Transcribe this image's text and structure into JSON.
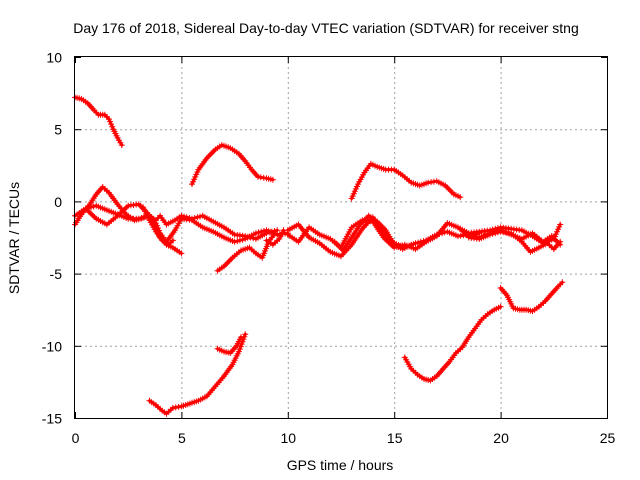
{
  "chart_data": {
    "type": "scatter",
    "title": "Day 176 of 2018, Sidereal Day-to-day VTEC variation (SDTVAR) for receiver stng",
    "xlabel": "GPS time / hours",
    "ylabel": "SDTVAR / TECUs",
    "xlim": [
      0,
      25
    ],
    "ylim": [
      -15,
      10
    ],
    "xticks": [
      0,
      5,
      10,
      15,
      20,
      25
    ],
    "yticks": [
      -15,
      -10,
      -5,
      0,
      5,
      10
    ],
    "grid": true,
    "marker": "plus",
    "color": "#ff0000",
    "series": [
      {
        "name": "s1",
        "x": [
          0.0,
          0.3,
          0.6,
          0.9,
          1.1,
          1.4,
          1.6,
          1.8,
          2.0,
          2.2
        ],
        "y": [
          7.2,
          7.1,
          6.8,
          6.3,
          6.0,
          6.0,
          5.7,
          5.0,
          4.4,
          3.9
        ]
      },
      {
        "name": "s2",
        "x": [
          0.0,
          0.3,
          0.7,
          1.0,
          1.3,
          1.6,
          2.0,
          2.4,
          2.8,
          3.1,
          3.4,
          3.7,
          4.0,
          4.3,
          4.6,
          5.0
        ],
        "y": [
          -1.6,
          -0.9,
          -0.2,
          0.5,
          1.0,
          0.6,
          -0.2,
          -0.9,
          -1.3,
          -1.2,
          -1.0,
          -1.6,
          -2.5,
          -3.0,
          -3.2,
          -3.6
        ]
      },
      {
        "name": "s3",
        "x": [
          0.0,
          0.5,
          1.0,
          1.5,
          2.0,
          2.5,
          3.0,
          3.5,
          3.8,
          4.0,
          4.3,
          4.7,
          5.0,
          5.5,
          6.0,
          6.5,
          7.0,
          7.5,
          8.0,
          8.5,
          9.0,
          9.5
        ],
        "y": [
          -1.0,
          -0.5,
          -0.3,
          -0.6,
          -0.9,
          -1.2,
          -1.2,
          -1.0,
          -1.3,
          -1.0,
          -1.6,
          -1.3,
          -1.0,
          -1.2,
          -1.0,
          -1.4,
          -1.8,
          -2.3,
          -2.4,
          -2.6,
          -2.2,
          -2.0
        ]
      },
      {
        "name": "s4",
        "x": [
          0.5,
          1.0,
          1.5,
          2.0,
          2.5,
          3.0,
          3.4,
          3.8,
          4.0,
          4.3,
          4.7,
          5.0,
          5.5,
          6.0,
          6.5,
          7.0,
          7.5,
          8.0,
          8.5,
          9.0,
          9.5,
          10.0
        ],
        "y": [
          -0.5,
          -1.2,
          -1.6,
          -1.0,
          -0.3,
          -0.2,
          -0.8,
          -1.5,
          -2.2,
          -2.8,
          -2.0,
          -1.2,
          -1.3,
          -1.8,
          -2.1,
          -2.5,
          -2.8,
          -2.6,
          -2.2,
          -2.0,
          -2.3,
          -2.2
        ]
      },
      {
        "name": "s5",
        "x": [
          3.2,
          3.5,
          3.8,
          4.1,
          4.4,
          4.6
        ],
        "y": [
          -0.4,
          -1.3,
          -2.1,
          -2.7,
          -3.0,
          -2.7
        ]
      },
      {
        "name": "s6",
        "x": [
          5.5,
          5.8,
          6.2,
          6.6,
          6.9,
          7.3,
          7.7,
          8.0,
          8.3,
          8.6,
          9.0,
          9.3
        ],
        "y": [
          1.2,
          2.2,
          3.0,
          3.6,
          3.9,
          3.7,
          3.3,
          2.8,
          2.2,
          1.7,
          1.6,
          1.5
        ]
      },
      {
        "name": "s7",
        "x": [
          6.7,
          7.0,
          7.4,
          7.8,
          8.2,
          8.5,
          8.8,
          9.1,
          9.4
        ],
        "y": [
          -4.8,
          -4.5,
          -3.9,
          -3.4,
          -3.2,
          -3.6,
          -3.9,
          -2.8,
          -2.2
        ]
      },
      {
        "name": "s8",
        "x": [
          9.0,
          9.3,
          9.6,
          9.8
        ],
        "y": [
          -2.7,
          -3.0,
          -2.6,
          -2.0
        ]
      },
      {
        "name": "s9",
        "x": [
          3.5,
          3.8,
          4.1,
          4.3,
          4.6,
          5.0,
          5.4,
          5.8,
          6.2,
          6.6,
          7.0,
          7.4,
          7.7,
          8.0
        ],
        "y": [
          -13.8,
          -14.1,
          -14.5,
          -14.7,
          -14.3,
          -14.2,
          -14.0,
          -13.8,
          -13.5,
          -12.8,
          -12.1,
          -11.3,
          -10.4,
          -9.2
        ]
      },
      {
        "name": "s10",
        "x": [
          6.7,
          7.0,
          7.3,
          7.6,
          7.8
        ],
        "y": [
          -10.2,
          -10.4,
          -10.5,
          -10.0,
          -9.4
        ]
      },
      {
        "name": "s11",
        "x": [
          10.0,
          10.5,
          11.0,
          11.5,
          12.0,
          12.5,
          13.0,
          13.5,
          14.0,
          14.5,
          15.0,
          15.5,
          16.0,
          16.5,
          17.0,
          17.5,
          18.0,
          18.5,
          19.0
        ],
        "y": [
          -2.3,
          -2.8,
          -1.8,
          -2.3,
          -2.6,
          -3.2,
          -1.8,
          -1.3,
          -1.4,
          -2.5,
          -3.2,
          -3.0,
          -3.3,
          -2.8,
          -2.4,
          -1.5,
          -1.8,
          -2.4,
          -2.2
        ]
      },
      {
        "name": "s12",
        "x": [
          10.0,
          10.5,
          11.0,
          11.5,
          12.0,
          12.5,
          13.0,
          13.5,
          14.0,
          14.5,
          15.0,
          15.5,
          16.0,
          16.5,
          17.0,
          17.5,
          18.0,
          18.5,
          19.0,
          19.5,
          20.0
        ],
        "y": [
          -2.0,
          -1.6,
          -2.5,
          -2.9,
          -3.5,
          -3.8,
          -3.0,
          -1.9,
          -1.1,
          -2.2,
          -2.9,
          -3.2,
          -2.9,
          -2.7,
          -2.3,
          -2.1,
          -2.4,
          -2.3,
          -2.5,
          -2.2,
          -1.9
        ]
      },
      {
        "name": "s13",
        "x": [
          12.2,
          12.6,
          13.0,
          13.4,
          13.8,
          14.2,
          14.6,
          15.0,
          15.4,
          15.8
        ],
        "y": [
          -2.8,
          -3.4,
          -2.5,
          -1.6,
          -1.0,
          -1.4,
          -2.0,
          -3.0,
          -3.3,
          -3.0
        ]
      },
      {
        "name": "s14",
        "x": [
          13.0,
          13.3,
          13.6,
          13.9,
          14.2,
          14.6,
          15.0,
          15.4,
          15.8,
          16.2,
          16.6,
          17.0,
          17.4,
          17.8,
          18.1
        ],
        "y": [
          0.2,
          1.2,
          2.0,
          2.6,
          2.4,
          2.2,
          2.2,
          1.8,
          1.3,
          1.1,
          1.3,
          1.4,
          1.1,
          0.5,
          0.3
        ]
      },
      {
        "name": "s15",
        "x": [
          18.0,
          18.5,
          19.0,
          19.5,
          20.0,
          20.5,
          21.0,
          21.5,
          22.0,
          22.5,
          22.8
        ],
        "y": [
          -1.8,
          -2.2,
          -2.1,
          -2.0,
          -1.8,
          -1.9,
          -2.0,
          -2.4,
          -2.9,
          -2.6,
          -1.6
        ]
      },
      {
        "name": "s16",
        "x": [
          18.5,
          19.0,
          19.5,
          20.0,
          20.5,
          21.0,
          21.4,
          21.8,
          22.2,
          22.5,
          22.8
        ],
        "y": [
          -2.5,
          -2.6,
          -2.3,
          -2.1,
          -2.2,
          -2.8,
          -3.5,
          -3.2,
          -2.9,
          -3.3,
          -2.8
        ]
      },
      {
        "name": "s17",
        "x": [
          20.0,
          20.5,
          21.0,
          21.5,
          22.0,
          22.4,
          22.8
        ],
        "y": [
          -2.0,
          -2.3,
          -2.6,
          -2.2,
          -2.8,
          -2.4,
          -3.0
        ]
      },
      {
        "name": "s18",
        "x": [
          15.5,
          15.8,
          16.1,
          16.4,
          16.7,
          17.0,
          17.3,
          17.6,
          17.9,
          18.2,
          18.5,
          18.8,
          19.1,
          19.4,
          19.7,
          20.0
        ],
        "y": [
          -10.8,
          -11.6,
          -12.0,
          -12.3,
          -12.4,
          -12.1,
          -11.6,
          -11.1,
          -10.5,
          -10.1,
          -9.4,
          -8.8,
          -8.2,
          -7.8,
          -7.5,
          -7.3
        ]
      },
      {
        "name": "s19",
        "x": [
          20.0,
          20.3,
          20.6,
          20.9,
          21.2,
          21.5,
          21.8,
          22.1,
          22.4,
          22.7,
          22.9
        ],
        "y": [
          -6.0,
          -6.5,
          -7.4,
          -7.5,
          -7.5,
          -7.6,
          -7.3,
          -6.9,
          -6.4,
          -5.9,
          -5.6
        ]
      }
    ]
  }
}
